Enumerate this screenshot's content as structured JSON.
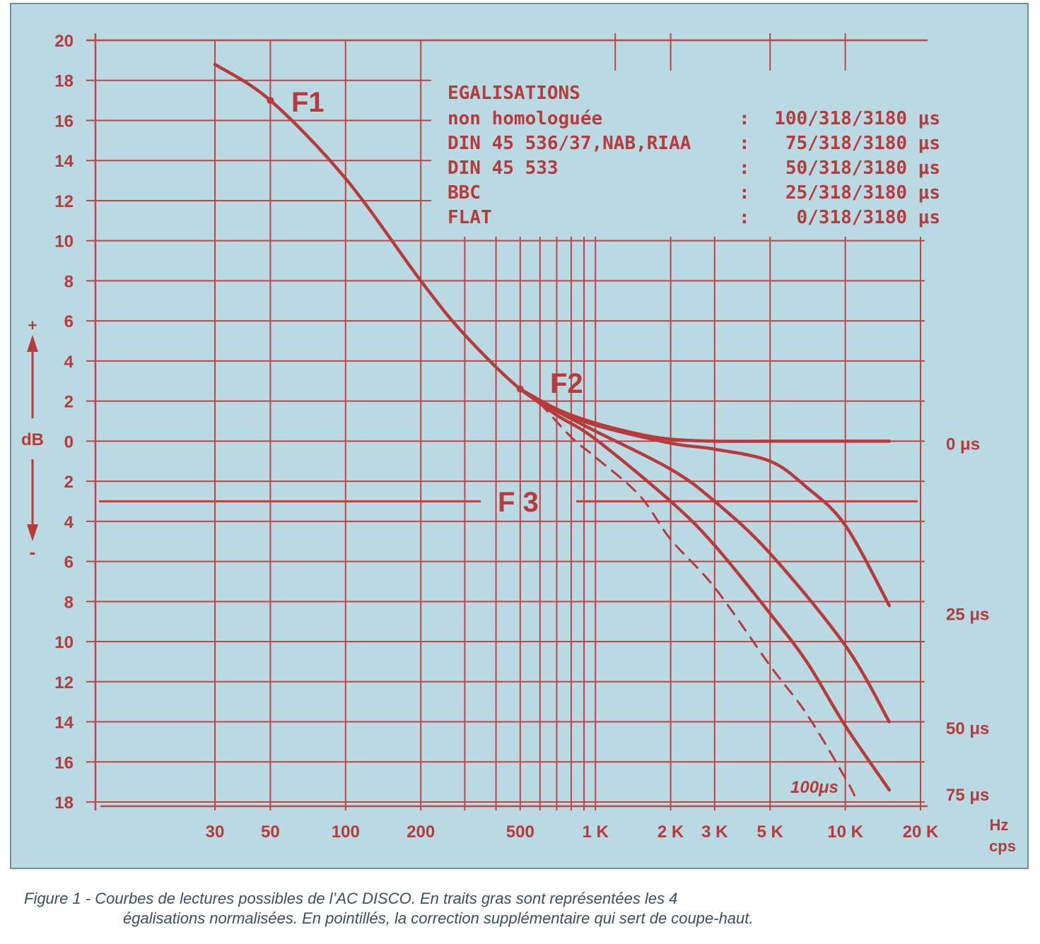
{
  "chart_data": {
    "type": "line",
    "x_scale": "log",
    "xlim": [
      25,
      25000
    ],
    "ylim": [
      -18,
      20
    ],
    "ylabel": "dB",
    "ylabel_plus": "+",
    "ylabel_minus": "-",
    "xlabel_line1": "Hz",
    "xlabel_line2": "cps",
    "y_ticks": [
      20,
      18,
      16,
      14,
      12,
      10,
      8,
      6,
      4,
      2,
      0,
      -2,
      -4,
      -6,
      -8,
      -10,
      -12,
      -14,
      -16,
      -18
    ],
    "y_tick_labels": [
      "20",
      "18",
      "16",
      "14",
      "12",
      "10",
      "8",
      "6",
      "4",
      "2",
      "0",
      "2",
      "4",
      "6",
      "8",
      "10",
      "12",
      "14",
      "16",
      "18"
    ],
    "x_ticks": [
      30,
      50,
      100,
      200,
      500,
      1000,
      2000,
      3000,
      5000,
      10000,
      20000
    ],
    "x_tick_labels": [
      "30",
      "50",
      "100",
      "200",
      "500",
      "1 K",
      "2 K",
      "3 K",
      "5 K",
      "10 K",
      "20 K"
    ],
    "grid": true,
    "legend": {
      "title": "EGALISATIONS",
      "rows": [
        {
          "name": "non homologuée",
          "sep": ":",
          "value": "100/318/3180 μs"
        },
        {
          "name": "DIN 45 536/37,NAB,RIAA",
          "sep": ":",
          "value": "75/318/3180 μs"
        },
        {
          "name": "DIN 45 533",
          "sep": ":",
          "value": "50/318/3180 μs"
        },
        {
          "name": "BBC",
          "sep": ":",
          "value": "25/318/3180 μs"
        },
        {
          "name": "FLAT",
          "sep": ":",
          "value": "0/318/3180 μs"
        }
      ]
    },
    "annotations": {
      "f1": "F1",
      "f2": "F2",
      "f3": "F 3",
      "f3_level": -3,
      "dashed_label": "100μs"
    },
    "series": [
      {
        "name": "0 μs",
        "dashed": false,
        "points": [
          [
            30,
            18.8
          ],
          [
            50,
            17.0
          ],
          [
            100,
            13.1
          ],
          [
            200,
            8.0
          ],
          [
            300,
            5.3
          ],
          [
            500,
            2.6
          ],
          [
            700,
            1.6
          ],
          [
            1000,
            0.9
          ],
          [
            1500,
            0.35
          ],
          [
            2000,
            0.1
          ],
          [
            3000,
            0
          ],
          [
            5000,
            0
          ],
          [
            10000,
            0
          ],
          [
            15000,
            0
          ]
        ]
      },
      {
        "name": "25 μs",
        "dashed": false,
        "points": [
          [
            500,
            2.6
          ],
          [
            700,
            1.6
          ],
          [
            1000,
            0.8
          ],
          [
            2000,
            -0.1
          ],
          [
            3000,
            -0.4
          ],
          [
            5000,
            -1.0
          ],
          [
            7000,
            -2.3
          ],
          [
            10000,
            -4.2
          ],
          [
            15000,
            -8.2
          ]
        ]
      },
      {
        "name": "50 μs",
        "dashed": false,
        "points": [
          [
            500,
            2.6
          ],
          [
            700,
            1.5
          ],
          [
            1000,
            0.5
          ],
          [
            2000,
            -1.4
          ],
          [
            3000,
            -3.0
          ],
          [
            5000,
            -5.6
          ],
          [
            10000,
            -10.2
          ],
          [
            15000,
            -14.0
          ]
        ]
      },
      {
        "name": "75 μs",
        "dashed": false,
        "points": [
          [
            500,
            2.6
          ],
          [
            700,
            1.3
          ],
          [
            1000,
            0.1
          ],
          [
            2000,
            -3.0
          ],
          [
            3000,
            -5.2
          ],
          [
            5000,
            -8.6
          ],
          [
            7000,
            -11.0
          ],
          [
            10000,
            -14.2
          ],
          [
            15000,
            -17.4
          ]
        ]
      },
      {
        "name": "100μs",
        "dashed": true,
        "points": [
          [
            600,
            1.9
          ],
          [
            800,
            0.2
          ],
          [
            1000,
            -0.8
          ],
          [
            1500,
            -2.7
          ],
          [
            2000,
            -4.9
          ],
          [
            3000,
            -7.3
          ],
          [
            5000,
            -11.2
          ],
          [
            7000,
            -13.6
          ],
          [
            10000,
            -16.8
          ],
          [
            11000,
            -17.8
          ]
        ]
      }
    ],
    "right_labels": [
      {
        "text": "0 μs",
        "y": 0
      },
      {
        "text": "25 μs",
        "y": -8.5
      },
      {
        "text": "50 μs",
        "y": -14.2
      },
      {
        "text": "75 μs",
        "y": -17.5
      }
    ]
  },
  "caption": {
    "line1": "Figure 1 - Courbes de lectures possibles de l’AC DISCO. En traits gras sont représentées les 4",
    "line2": "égalisations normalisées. En pointillés, la correction supplémentaire qui sert de coupe-haut."
  }
}
